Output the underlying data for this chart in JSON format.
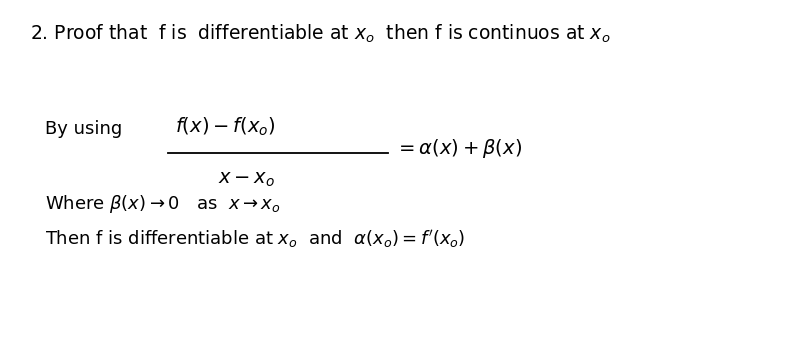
{
  "background_color": "#ffffff",
  "title_text": "2. Proof that  f is  differentiable at $x_o$  then f is continuos at $x_o$",
  "title_fontsize": 13.5,
  "title_fontfamily": "DejaVu Sans",
  "by_using_text": "By using",
  "by_using_fontsize": 13,
  "fraction_numerator": "$f(x) - f(x_o)$",
  "fraction_denominator": "$x - x_o$",
  "fraction_rhs": "$= \\alpha(x) + \\beta(x)$",
  "where_text": "Where $\\beta(x) \\rightarrow 0$   as  $x \\rightarrow x_o$",
  "where_fontsize": 13,
  "then_text": "Then f is differentiable at $x_o$  and  $\\alpha(x_o) = f'(x_o)$",
  "then_fontsize": 13,
  "math_fontsize": 14
}
